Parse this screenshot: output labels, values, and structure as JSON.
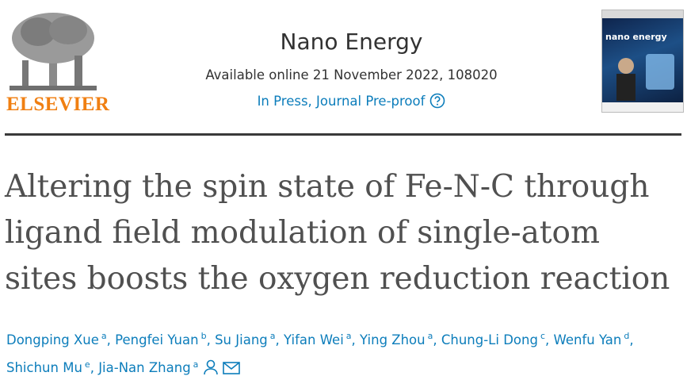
{
  "header": {
    "publisher": "ELSEVIER",
    "journal": "Nano Energy",
    "available_online": "Available online 21 November 2022, 108020",
    "status": "In Press, Journal Pre-proof",
    "cover_title": "nano energy"
  },
  "article": {
    "title_lines": [
      "Altering the spin state of Fe-N-C through",
      "ligand field modulation of single-atom",
      "sites boosts the oxygen reduction reaction"
    ],
    "author_separator": ",",
    "authors": [
      {
        "name": "Dongping Xue",
        "affiliation": "a"
      },
      {
        "name": "Pengfei Yuan",
        "affiliation": "b"
      },
      {
        "name": "Su Jiang",
        "affiliation": "a"
      },
      {
        "name": "Yifan Wei",
        "affiliation": "a"
      },
      {
        "name": "Ying Zhou",
        "affiliation": "a"
      },
      {
        "name": "Chung-Li Dong",
        "affiliation": "c"
      },
      {
        "name": "Wenfu Yan",
        "affiliation": "d"
      },
      {
        "name": "Shichun Mu",
        "affiliation": "e"
      },
      {
        "name": "Jia-Nan Zhang",
        "affiliation": "a"
      }
    ]
  }
}
